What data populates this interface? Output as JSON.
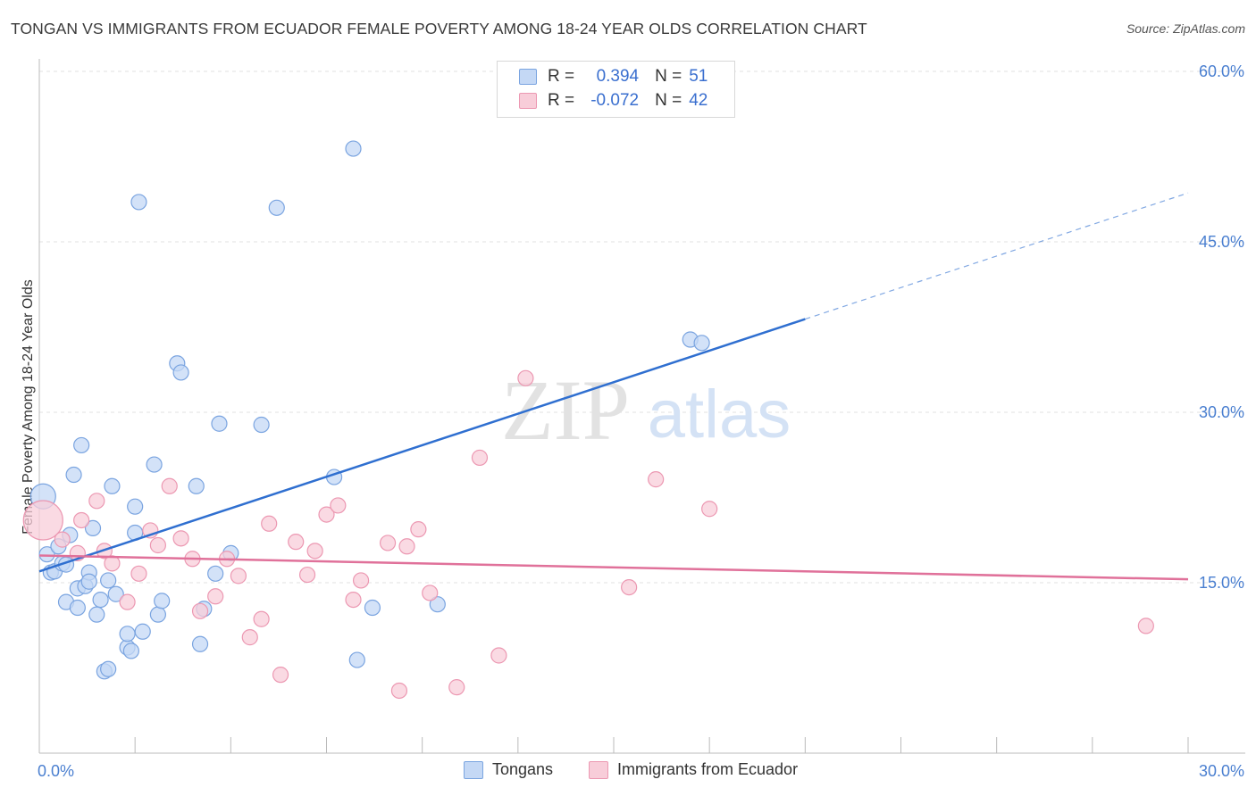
{
  "header": {
    "title": "TONGAN VS IMMIGRANTS FROM ECUADOR FEMALE POVERTY AMONG 18-24 YEAR OLDS CORRELATION CHART",
    "source": "Source: ZipAtlas.com"
  },
  "watermark": {
    "zip": "ZIP",
    "atlas": "atlas"
  },
  "legend_top": {
    "rows": [
      {
        "r_label": "R =",
        "r_value": "0.394",
        "n_label": "N =",
        "n_value": "51"
      },
      {
        "r_label": "R =",
        "r_value": "-0.072",
        "n_label": "N =",
        "n_value": "42"
      }
    ]
  },
  "legend_bottom": {
    "items": [
      {
        "label": "Tongans"
      },
      {
        "label": "Immigrants from Ecuador"
      }
    ]
  },
  "colors": {
    "blue_fill": "#c4d8f5",
    "blue_stroke": "#7aa4e0",
    "blue_line": "#2f6fd0",
    "pink_fill": "#f8cdd9",
    "pink_stroke": "#ec98b2",
    "pink_line": "#e0719a",
    "tick_label": "#4a7fd0",
    "grid": "#e2e2e2"
  },
  "chart_data": {
    "type": "scatter",
    "title": "TONGAN VS IMMIGRANTS FROM ECUADOR FEMALE POVERTY AMONG 18-24 YEAR OLDS CORRELATION CHART",
    "xlabel": "",
    "ylabel": "Female Poverty Among 18-24 Year Olds",
    "xlim": [
      0,
      30
    ],
    "ylim": [
      0,
      60
    ],
    "x_tick_labels": [
      "0.0%",
      "30.0%"
    ],
    "y_ticks": [
      15,
      30,
      45,
      60
    ],
    "y_tick_labels": [
      "15.0%",
      "30.0%",
      "45.0%",
      "60.0%"
    ],
    "grid": true,
    "legend_position": "top-center",
    "series": [
      {
        "name": "Tongans",
        "color": "#c4d8f5",
        "points": [
          [
            0.1,
            22.6
          ],
          [
            0.2,
            17.5
          ],
          [
            0.3,
            15.9
          ],
          [
            0.4,
            16.0
          ],
          [
            0.5,
            18.2
          ],
          [
            0.6,
            16.7
          ],
          [
            0.7,
            16.6
          ],
          [
            0.7,
            13.3
          ],
          [
            0.8,
            19.2
          ],
          [
            0.9,
            24.5
          ],
          [
            1.0,
            14.5
          ],
          [
            1.0,
            12.8
          ],
          [
            1.1,
            27.1
          ],
          [
            1.2,
            14.7
          ],
          [
            1.3,
            15.9
          ],
          [
            1.3,
            15.1
          ],
          [
            1.4,
            19.8
          ],
          [
            1.5,
            12.2
          ],
          [
            1.6,
            13.5
          ],
          [
            1.7,
            7.2
          ],
          [
            1.8,
            15.2
          ],
          [
            1.8,
            7.4
          ],
          [
            1.9,
            23.5
          ],
          [
            2.0,
            14.0
          ],
          [
            2.3,
            9.3
          ],
          [
            2.3,
            10.5
          ],
          [
            2.4,
            9.0
          ],
          [
            2.5,
            19.4
          ],
          [
            2.5,
            21.7
          ],
          [
            2.6,
            48.5
          ],
          [
            2.7,
            10.7
          ],
          [
            3.0,
            25.4
          ],
          [
            3.1,
            12.2
          ],
          [
            3.2,
            13.4
          ],
          [
            3.6,
            34.3
          ],
          [
            3.7,
            33.5
          ],
          [
            4.1,
            23.5
          ],
          [
            4.2,
            9.6
          ],
          [
            4.3,
            12.7
          ],
          [
            4.6,
            15.8
          ],
          [
            4.7,
            29.0
          ],
          [
            5.0,
            17.6
          ],
          [
            5.8,
            28.9
          ],
          [
            6.2,
            48.0
          ],
          [
            7.7,
            24.3
          ],
          [
            8.2,
            53.2
          ],
          [
            8.3,
            8.2
          ],
          [
            8.7,
            12.8
          ],
          [
            10.4,
            13.1
          ],
          [
            17.0,
            36.4
          ],
          [
            17.3,
            36.1
          ]
        ],
        "trend": {
          "x1": 0.0,
          "y1": 16.0,
          "x2": 20.0,
          "y2": 38.2,
          "dashed_to_x": 30.0,
          "dashed_to_y": 49.3
        }
      },
      {
        "name": "Immigrants from Ecuador",
        "color": "#f8cdd9",
        "points": [
          [
            0.1,
            20.5
          ],
          [
            0.6,
            18.8
          ],
          [
            1.0,
            17.6
          ],
          [
            1.1,
            20.5
          ],
          [
            1.5,
            22.2
          ],
          [
            1.7,
            17.8
          ],
          [
            1.9,
            16.7
          ],
          [
            2.3,
            13.3
          ],
          [
            2.6,
            15.8
          ],
          [
            2.9,
            19.6
          ],
          [
            3.1,
            18.3
          ],
          [
            3.4,
            23.5
          ],
          [
            3.7,
            18.9
          ],
          [
            4.0,
            17.1
          ],
          [
            4.2,
            12.5
          ],
          [
            4.6,
            13.8
          ],
          [
            4.9,
            17.1
          ],
          [
            5.2,
            15.6
          ],
          [
            5.5,
            10.2
          ],
          [
            5.8,
            11.8
          ],
          [
            6.0,
            20.2
          ],
          [
            6.3,
            6.9
          ],
          [
            6.7,
            18.6
          ],
          [
            7.0,
            15.7
          ],
          [
            7.2,
            17.8
          ],
          [
            7.5,
            21.0
          ],
          [
            7.8,
            21.8
          ],
          [
            8.2,
            13.5
          ],
          [
            8.4,
            15.2
          ],
          [
            9.1,
            18.5
          ],
          [
            9.4,
            5.5
          ],
          [
            9.6,
            18.2
          ],
          [
            9.9,
            19.7
          ],
          [
            10.2,
            14.1
          ],
          [
            10.9,
            5.8
          ],
          [
            11.5,
            26.0
          ],
          [
            12.0,
            8.6
          ],
          [
            12.7,
            33.0
          ],
          [
            15.4,
            14.6
          ],
          [
            16.1,
            24.1
          ],
          [
            17.5,
            21.5
          ],
          [
            28.9,
            11.2
          ]
        ],
        "trend": {
          "x1": 0.0,
          "y1": 17.4,
          "x2": 30.0,
          "y2": 15.3
        }
      }
    ]
  }
}
